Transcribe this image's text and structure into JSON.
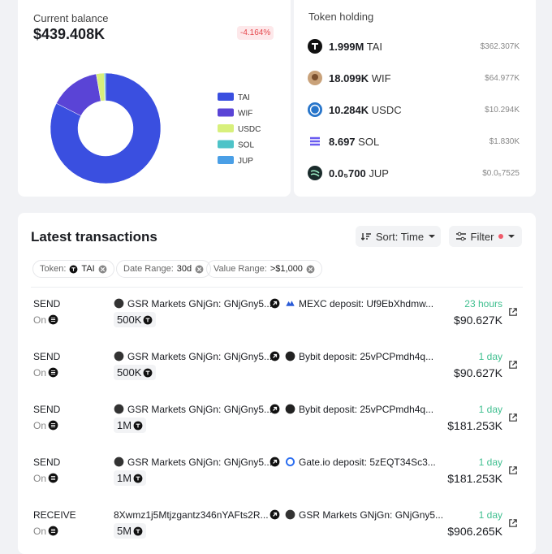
{
  "balance": {
    "label": "Current balance",
    "value": "$439.408K",
    "change": "-4.164%"
  },
  "chart_data": {
    "type": "pie",
    "donut": true,
    "categories": [
      "TAI",
      "WIF",
      "USDC",
      "SOL",
      "JUP"
    ],
    "values": [
      82.5,
      14.8,
      2.3,
      0.4,
      0
    ],
    "colors": [
      "#3a4fe0",
      "#5a44d6",
      "#d8f07c",
      "#4ec3c8",
      "#4a9fe6"
    ]
  },
  "holdings": {
    "title": "Token holding",
    "items": [
      {
        "amount": "1.999M",
        "symbol": "TAI",
        "value": "$362.307K"
      },
      {
        "amount": "18.099K",
        "symbol": "WIF",
        "value": "$64.977K"
      },
      {
        "amount": "10.284K",
        "symbol": "USDC",
        "value": "$10.294K"
      },
      {
        "amount": "8.697",
        "symbol": "SOL",
        "value": "$1.830K"
      },
      {
        "amount": "0.0₅700",
        "symbol": "JUP",
        "value": "$0.0₅7525"
      }
    ]
  },
  "transactions": {
    "title": "Latest transactions",
    "sort": "Sort: Time",
    "filter": "Filter",
    "filters": [
      {
        "label": "Token:",
        "value": "TAI"
      },
      {
        "label": "Date Range:",
        "value": "30d"
      },
      {
        "label": "Value Range:",
        "value": ">$1,000"
      }
    ],
    "on_label": "On",
    "rows": [
      {
        "type": "SEND",
        "from": "GSR Markets GNjGn: GNjGny5...",
        "to": "MEXC deposit: Uf9EbXhdmw...",
        "amount": "500K",
        "time": "23 hours",
        "value": "$90.627K"
      },
      {
        "type": "SEND",
        "from": "GSR Markets GNjGn: GNjGny5...",
        "to": "Bybit deposit: 25vPCPmdh4q...",
        "amount": "500K",
        "time": "1 day",
        "value": "$90.627K"
      },
      {
        "type": "SEND",
        "from": "GSR Markets GNjGn: GNjGny5...",
        "to": "Bybit deposit: 25vPCPmdh4q...",
        "amount": "1M",
        "time": "1 day",
        "value": "$181.253K"
      },
      {
        "type": "SEND",
        "from": "GSR Markets GNjGn: GNjGny5...",
        "to": "Gate.io deposit: 5zEQT34Sc3...",
        "amount": "1M",
        "time": "1 day",
        "value": "$181.253K"
      },
      {
        "type": "RECEIVE",
        "from": "8Xwmz1j5Mtjzgantz346nYAFts2R...",
        "to": "GSR Markets GNjGn: GNjGny5...",
        "amount": "5M",
        "time": "1 day",
        "value": "$906.265K"
      }
    ]
  }
}
